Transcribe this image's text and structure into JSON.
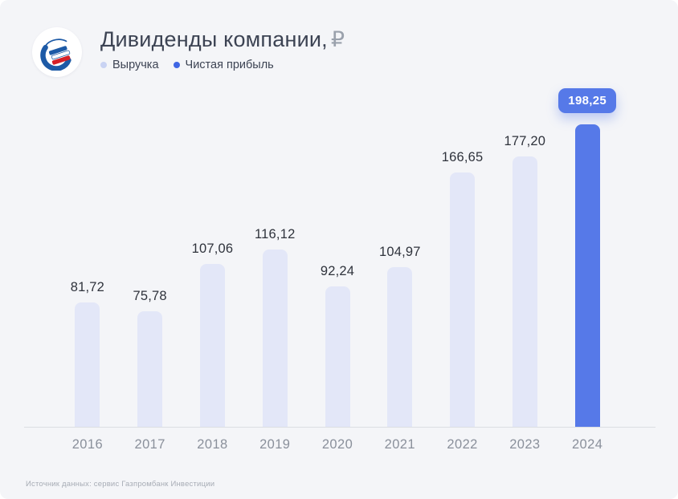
{
  "header": {
    "title": "Дивиденды компании,",
    "currency": "₽",
    "logo": "company-logo"
  },
  "legend": {
    "items": [
      {
        "label": "Выручка",
        "color": "#c9d3f3"
      },
      {
        "label": "Чистая прибыль",
        "color": "#3f66e4"
      }
    ]
  },
  "chart_data": {
    "type": "bar",
    "title": "Дивиденды компании, ₽",
    "categories": [
      "2016",
      "2017",
      "2018",
      "2019",
      "2020",
      "2021",
      "2022",
      "2023",
      "2024"
    ],
    "values": [
      81.72,
      75.78,
      107.06,
      116.12,
      92.24,
      104.97,
      166.65,
      177.2,
      198.25
    ],
    "value_labels": [
      "81,72",
      "75,78",
      "107,06",
      "116,12",
      "92,24",
      "104,97",
      "166,65",
      "177,20",
      "198,25"
    ],
    "highlighted_index": 8,
    "highlighted_label": "198,25",
    "bar_color_default": "#e3e7f8",
    "bar_color_highlight": "#5679e8",
    "ylim": [
      0,
      210
    ],
    "grid": false,
    "legend_position": "top-left",
    "xlabel": "",
    "ylabel": ""
  },
  "footer": {
    "source": "Источник данных: сервис Газпромбанк Инвестиции"
  }
}
